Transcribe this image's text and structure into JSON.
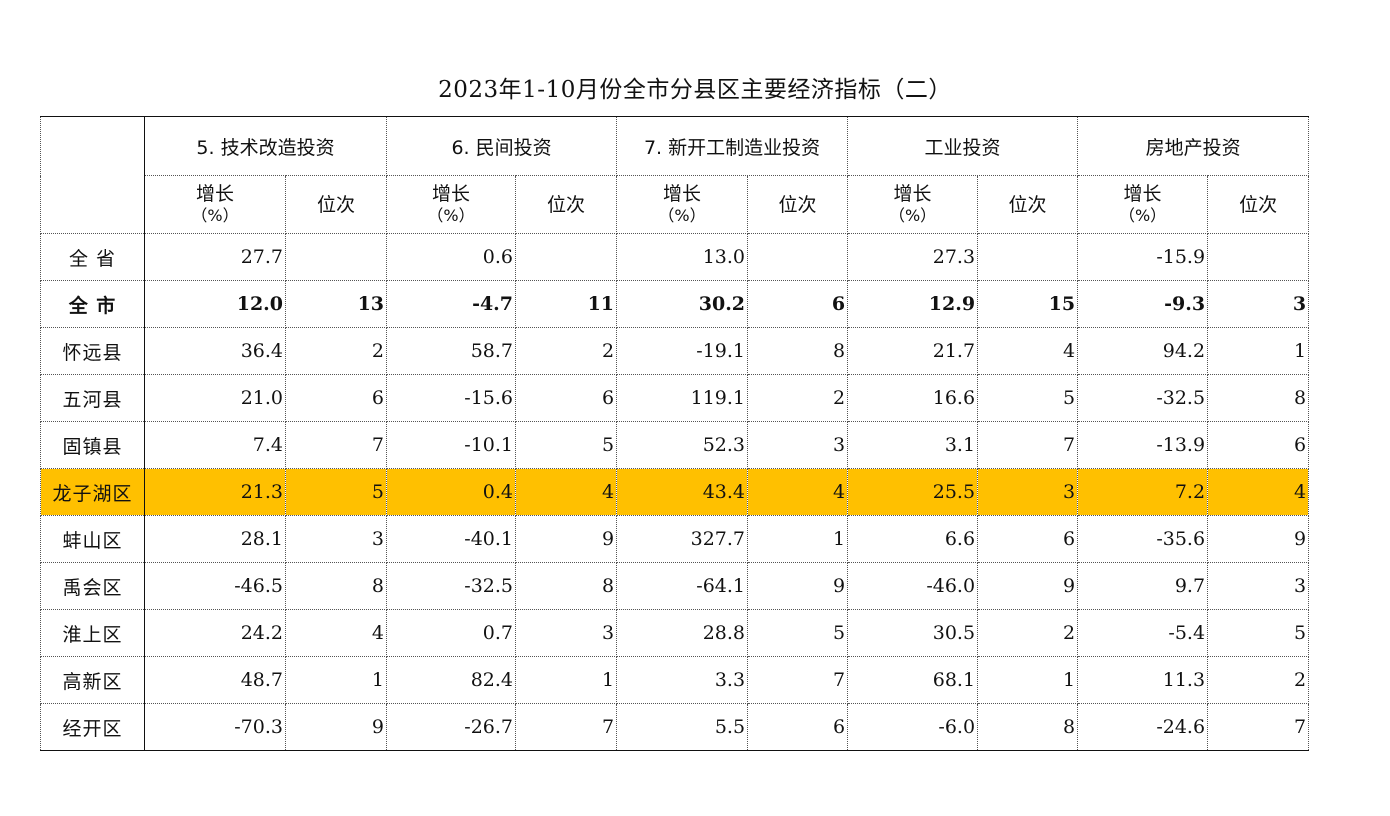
{
  "title": "2023年1-10月份全市分县区主要经济指标（二）",
  "groups": [
    "5. 技术改造投资",
    "6. 民间投资",
    "7. 新开工制造业投资",
    "工业投资",
    "房地产投资"
  ],
  "sub_headers": {
    "growth": "增长",
    "growth_unit": "（%）",
    "rank": "位次"
  },
  "rows": [
    {
      "name": "全 省",
      "cells": [
        "27.7",
        "",
        "0.6",
        "",
        "13.0",
        "",
        "27.3",
        "",
        "-15.9",
        ""
      ]
    },
    {
      "name": "全  市",
      "cells": [
        "12.0",
        "13",
        "-4.7",
        "11",
        "30.2",
        "6",
        "12.9",
        "15",
        "-9.3",
        "3"
      ]
    },
    {
      "name": "怀远县",
      "cells": [
        "36.4",
        "2",
        "58.7",
        "2",
        "-19.1",
        "8",
        "21.7",
        "4",
        "94.2",
        "1"
      ]
    },
    {
      "name": "五河县",
      "cells": [
        "21.0",
        "6",
        "-15.6",
        "6",
        "119.1",
        "2",
        "16.6",
        "5",
        "-32.5",
        "8"
      ]
    },
    {
      "name": "固镇县",
      "cells": [
        "7.4",
        "7",
        "-10.1",
        "5",
        "52.3",
        "3",
        "3.1",
        "7",
        "-13.9",
        "6"
      ]
    },
    {
      "name": "龙子湖区",
      "cells": [
        "21.3",
        "5",
        "0.4",
        "4",
        "43.4",
        "4",
        "25.5",
        "3",
        "7.2",
        "4"
      ]
    },
    {
      "name": "蚌山区",
      "cells": [
        "28.1",
        "3",
        "-40.1",
        "9",
        "327.7",
        "1",
        "6.6",
        "6",
        "-35.6",
        "9"
      ]
    },
    {
      "name": "禹会区",
      "cells": [
        "-46.5",
        "8",
        "-32.5",
        "8",
        "-64.1",
        "9",
        "-46.0",
        "9",
        "9.7",
        "3"
      ]
    },
    {
      "name": "淮上区",
      "cells": [
        "24.2",
        "4",
        "0.7",
        "3",
        "28.8",
        "5",
        "30.5",
        "2",
        "-5.4",
        "5"
      ]
    },
    {
      "name": "高新区",
      "cells": [
        "48.7",
        "1",
        "82.4",
        "1",
        "3.3",
        "7",
        "68.1",
        "1",
        "11.3",
        "2"
      ]
    },
    {
      "name": "经开区",
      "cells": [
        "-70.3",
        "9",
        "-26.7",
        "7",
        "5.5",
        "6",
        "-6.0",
        "8",
        "-24.6",
        "7"
      ]
    }
  ],
  "highlight_color": "#ffc000"
}
